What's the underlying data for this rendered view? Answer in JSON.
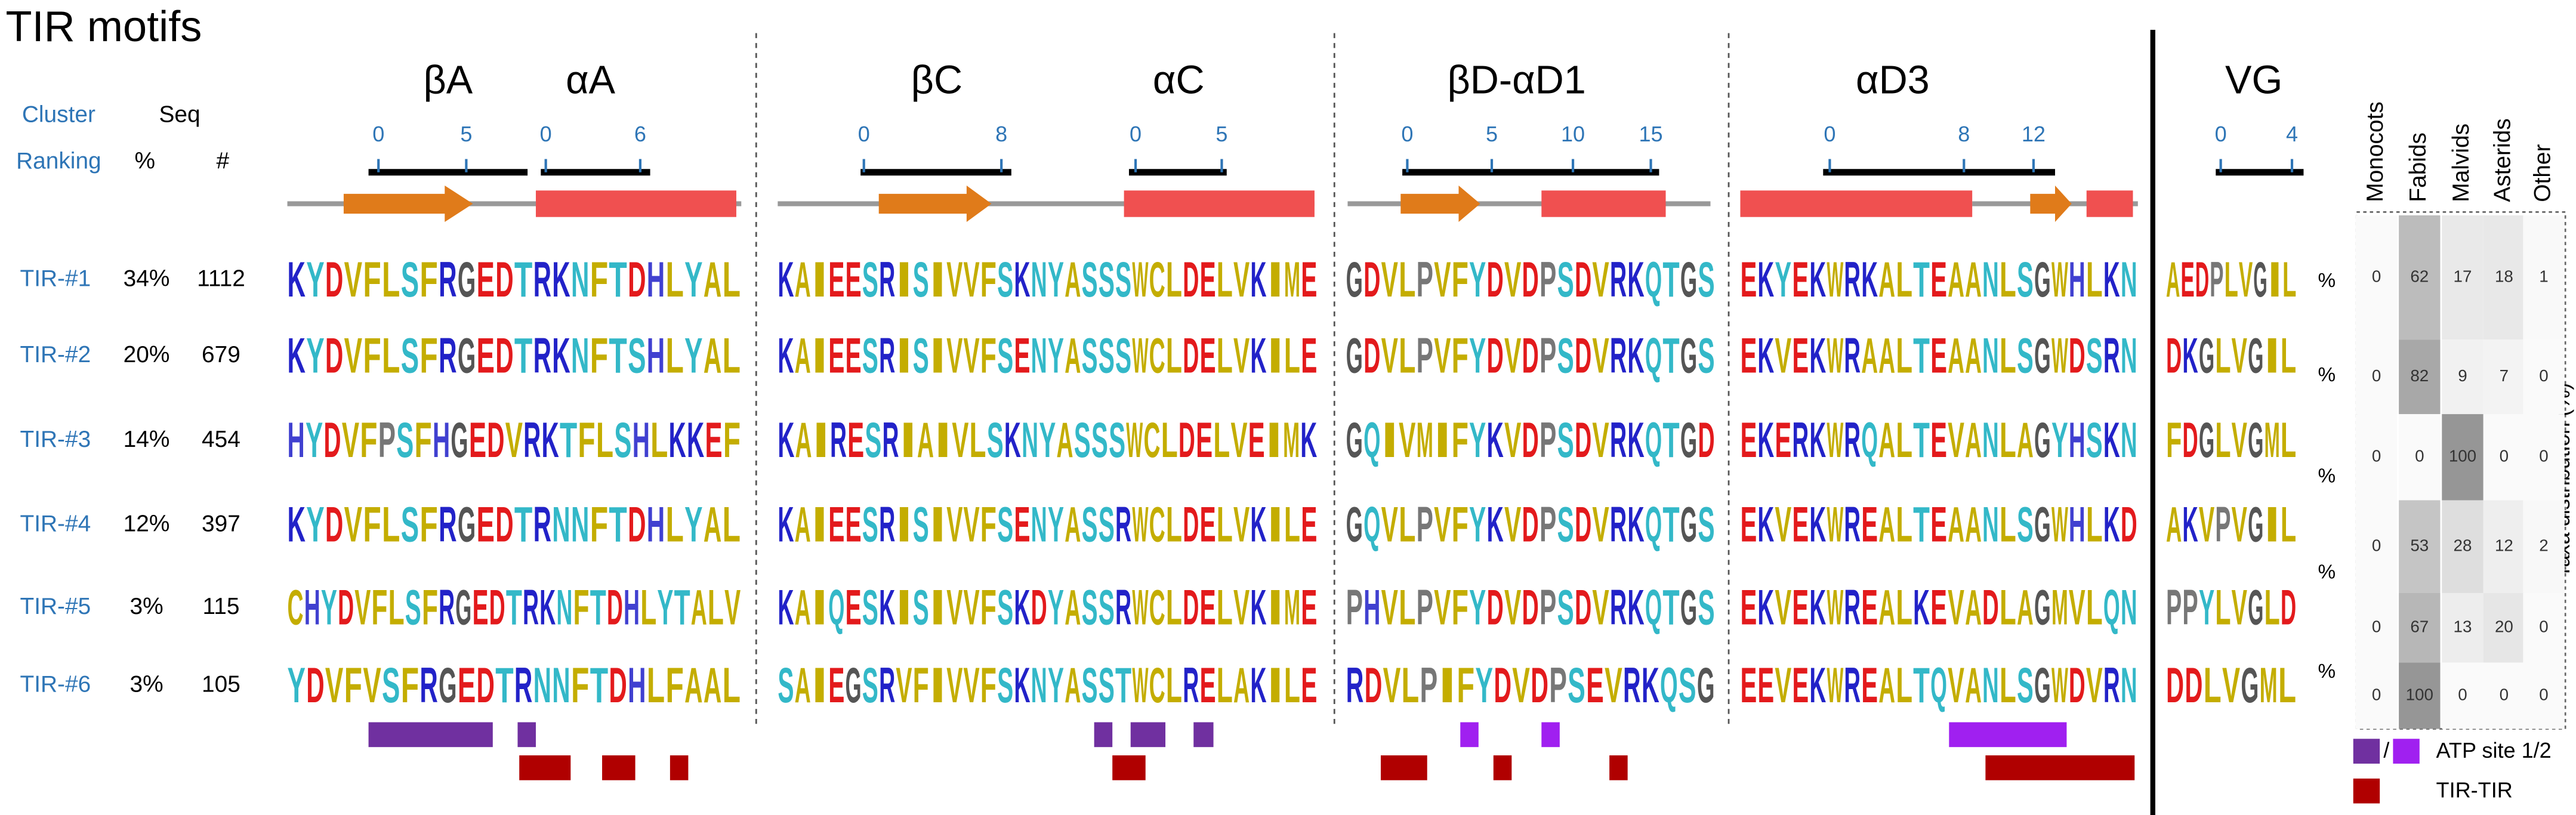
{
  "title": "TIR motifs",
  "header": {
    "cluster": "Cluster",
    "ranking": "Ranking",
    "seq": "Seq",
    "pct": "%",
    "count": "#"
  },
  "clusters": [
    {
      "name": "TIR-#1",
      "percent": "34%",
      "count": "1112"
    },
    {
      "name": "TIR-#2",
      "percent": "20%",
      "count": "679"
    },
    {
      "name": "TIR-#3",
      "percent": "14%",
      "count": "454"
    },
    {
      "name": "TIR-#4",
      "percent": "12%",
      "count": "397"
    },
    {
      "name": "TIR-#5",
      "percent": "3%",
      "count": "115"
    },
    {
      "name": "TIR-#6",
      "percent": "3%",
      "count": "105"
    }
  ],
  "sections": [
    {
      "label": "βA",
      "ticks": [
        "0",
        "5"
      ]
    },
    {
      "label": "αA",
      "ticks": [
        "0",
        "6"
      ]
    },
    {
      "label": "βC",
      "ticks": [
        "0",
        "8"
      ]
    },
    {
      "label": "αC",
      "ticks": [
        "0",
        "5"
      ]
    },
    {
      "label": "βD-αD1",
      "ticks": [
        "0",
        "5",
        "10",
        "15"
      ]
    },
    {
      "label": "αD3",
      "ticks": [
        "0",
        "8",
        "12"
      ]
    },
    {
      "label": "VG",
      "ticks": [
        "0",
        "4"
      ]
    }
  ],
  "logos": [
    [
      "KYDVFLSFRGEDTRKNFTDHLYAL",
      "KYDVFLSFRGEDTRKNFTSHLYAL",
      "HYDVFPSFHGEDVRKTFLSHLKKEF",
      "KYDVFLSFRGEDTRNNFTDHLYAL",
      "CHYDVFLSFRGEDTRKNFTDHLYTALV",
      "YDVFVSFRGEDTRNNFTDHLFAAL"
    ],
    [
      "KAIEESRISIVVFSKNYASSSWCLDELVKIME",
      "KAIEESRISIVVFSENYASSSWCLDELVKILE",
      "KAIRESRIAIVLSKNYASSSWCLDELVEIMK",
      "KAIEESRISIVVFSENYASSRWCLDELVKILE",
      "KAIQESKISIVVFSKDYASSRWCLDELVKIME",
      "SAIEGSRVFIVVFSKNYASSTWCLRELAKILE"
    ],
    [
      "GDVLPVFYDVDPSDVRKQTGS",
      "GDVLPVFYDVDPSDVRKQTGS",
      "GQIVMIFYKVDPSDVRKQTGD",
      "GQVLPVFYKVDPSDVRKQTGS",
      "PHVLPVFYDVDPSDVRKQTGS",
      "RDVLPIFYDVDPSEVRKQSG"
    ],
    [
      "EKYEKWRKALTEAANLSGWHLKN",
      "EKVEKWRAALTEAANLSGWDSRN",
      "EKERKWRQALTEVANLAGYHSKN",
      "EKVEKWREALTEAANLSGWHLKD",
      "EKVEKWREALKEVADLAGMVLQN",
      "EEVEKWREALTQVANLSGWDVRN"
    ],
    [
      "AEDPLVGIL",
      "DKGLVGIL",
      "FDGLVGML",
      "AKVPVGIL",
      "PPYLVGLD",
      "DDLVGML"
    ]
  ],
  "percent_marks": [
    "%",
    "%",
    "%",
    "%",
    "%"
  ],
  "taxa": {
    "title": "Taxa distribution (%)",
    "columns": [
      "Monocots",
      "Fabids",
      "Malvids",
      "Asterids",
      "Other"
    ],
    "rows": [
      [
        0,
        62,
        17,
        18,
        1
      ],
      [
        0,
        82,
        9,
        7,
        0
      ],
      [
        0,
        0,
        100,
        0,
        0
      ],
      [
        0,
        53,
        28,
        12,
        2
      ],
      [
        0,
        67,
        13,
        20,
        0
      ],
      [
        0,
        100,
        0,
        0,
        0
      ]
    ]
  },
  "legend": {
    "atp": "ATP site 1/2",
    "slash": "/",
    "tir": "TIR-TIR"
  }
}
